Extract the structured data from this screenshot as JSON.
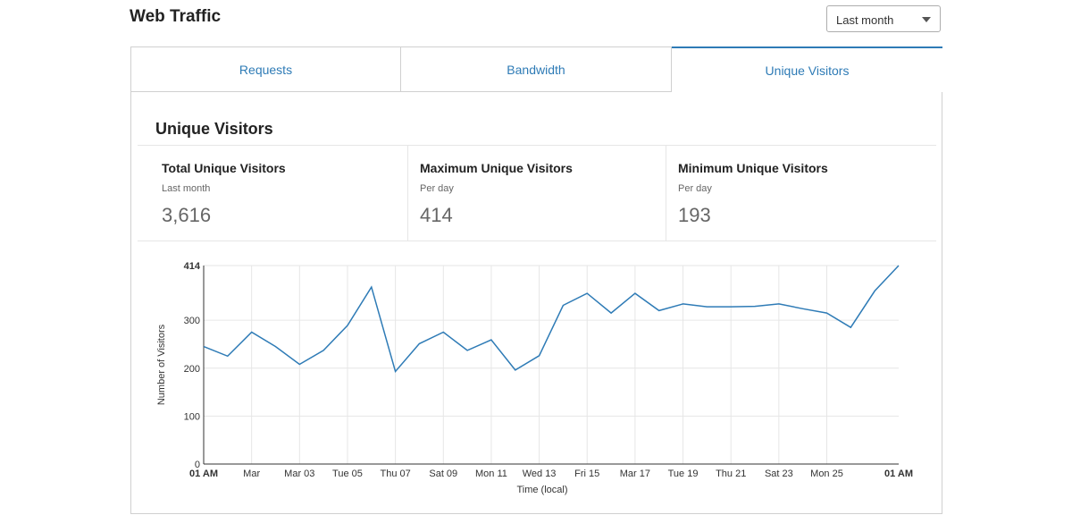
{
  "header": {
    "title": "Web Traffic"
  },
  "range_select": {
    "value": "Last month"
  },
  "tabs": [
    {
      "label": "Requests",
      "active": false
    },
    {
      "label": "Bandwidth",
      "active": false
    },
    {
      "label": "Unique Visitors",
      "active": true
    }
  ],
  "section": {
    "title": "Unique Visitors"
  },
  "stats": [
    {
      "title": "Total Unique Visitors",
      "subtitle": "Last month",
      "value": "3,616"
    },
    {
      "title": "Maximum Unique Visitors",
      "subtitle": "Per day",
      "value": "414"
    },
    {
      "title": "Minimum Unique Visitors",
      "subtitle": "Per day",
      "value": "193"
    }
  ],
  "colors": {
    "accent": "#2e7bb6",
    "line": "#2e7bb6",
    "grid": "#e6e6e6"
  },
  "chart_data": {
    "type": "line",
    "xlabel": "Time (local)",
    "ylabel": "Number of Visitors",
    "ylim": [
      0,
      414
    ],
    "yticks": [
      "0",
      "100",
      "200",
      "300",
      "414"
    ],
    "xticks": [
      "01 AM",
      "Mar",
      "Mar 03",
      "Tue 05",
      "Thu 07",
      "Sat 09",
      "Mon 11",
      "Wed 13",
      "Fri 15",
      "Mar 17",
      "Tue 19",
      "Thu 21",
      "Sat 23",
      "Mon 25",
      "01 AM"
    ],
    "grid": true,
    "series": [
      {
        "values": [
          245,
          225,
          275,
          245,
          208,
          237,
          289,
          369,
          193,
          251,
          275,
          237,
          259,
          196,
          226,
          331,
          356,
          315,
          356,
          320,
          334,
          328,
          328,
          329,
          334,
          324,
          315,
          285,
          361,
          414
        ]
      }
    ]
  }
}
